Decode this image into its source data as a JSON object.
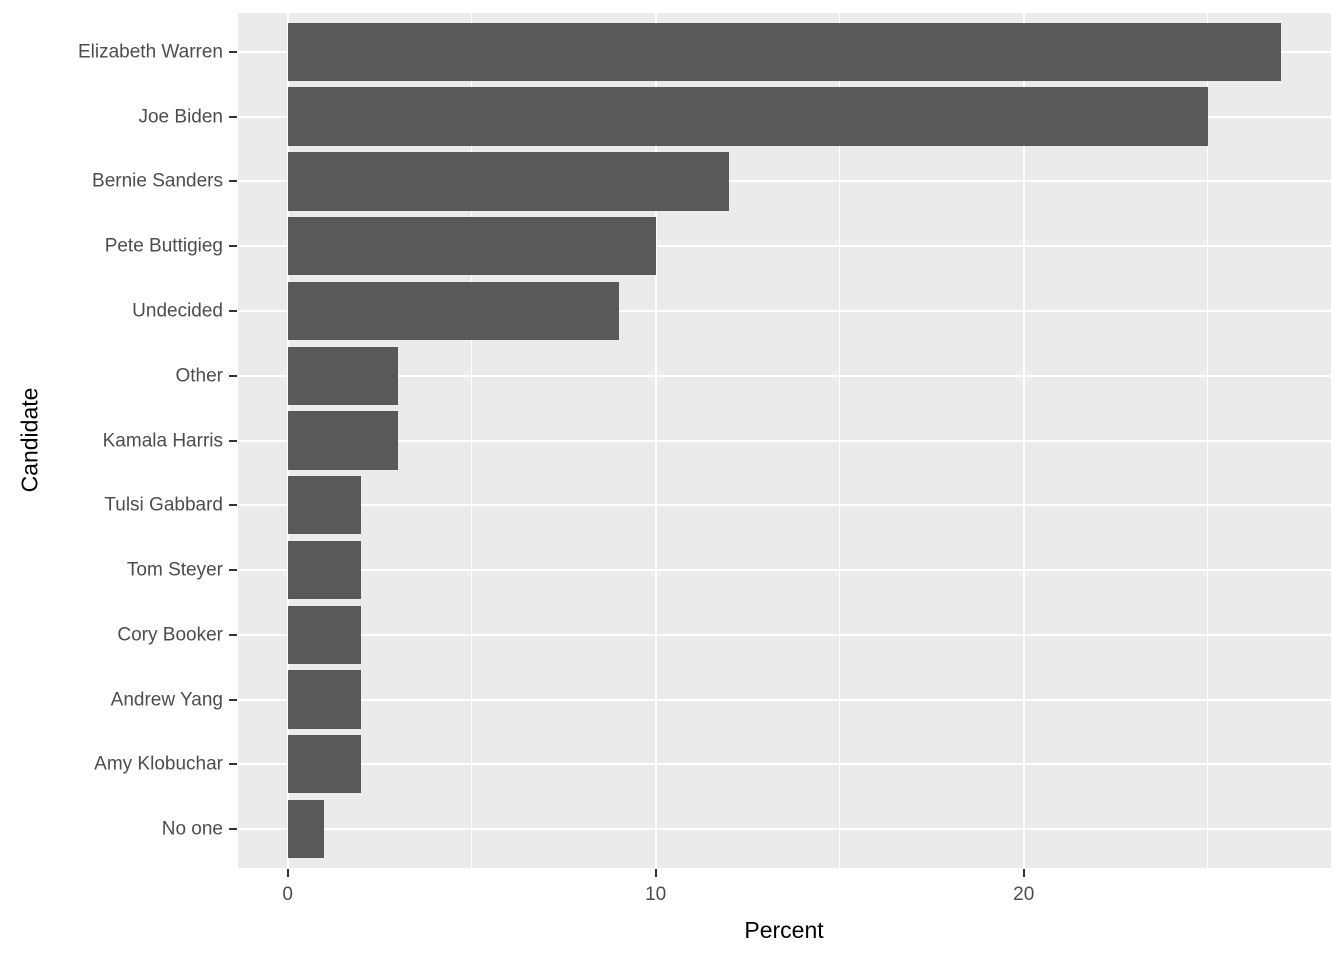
{
  "chart_data": {
    "type": "bar",
    "orientation": "horizontal",
    "title": "",
    "xlabel": "Percent",
    "ylabel": "Candidate",
    "categories": [
      "Elizabeth Warren",
      "Joe Biden",
      "Bernie Sanders",
      "Pete Buttigieg",
      "Undecided",
      "Other",
      "Kamala Harris",
      "Tulsi Gabbard",
      "Tom Steyer",
      "Cory Booker",
      "Andrew Yang",
      "Amy Klobuchar",
      "No one"
    ],
    "values": [
      27,
      25,
      12,
      10,
      9,
      3,
      3,
      2,
      2,
      2,
      2,
      2,
      1
    ],
    "xlim": [
      -1.35,
      28.35
    ],
    "x_major_ticks": [
      0,
      10,
      20
    ],
    "x_minor_ticks": [
      5,
      15,
      25
    ],
    "x_tick_labels": [
      "0",
      "10",
      "20"
    ],
    "grid": "on",
    "legend": "none",
    "colors": {
      "bar": "#595959",
      "panel_bg": "#EBEBEB",
      "gridline": "#FFFFFF",
      "tick_text": "#4D4D4D",
      "axis_title_text": "#000000",
      "figure_bg": "#FFFFFF"
    }
  }
}
